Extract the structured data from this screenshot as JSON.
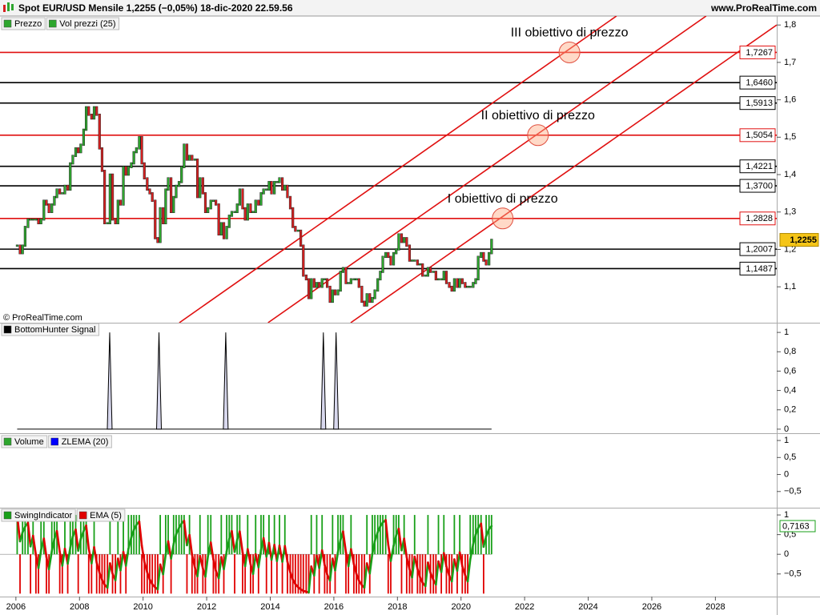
{
  "chart_data": [
    {
      "type": "candlestick",
      "title": "Spot EUR/USD Mensile 1,2255 (−0,05%) 18-dic-2020 22.59.56",
      "source": "www.ProRealTime.com",
      "copyright": "© ProRealTime.com",
      "legend": [
        {
          "name": "Prezzo",
          "color": "#2ea62e"
        },
        {
          "name": "Vol prezzi (25)",
          "color": "#2ea62e"
        }
      ],
      "up_color": "#2ea62e",
      "down_color": "#d62020",
      "x": [
        2006.04,
        2006.13,
        2006.21,
        2006.29,
        2006.38,
        2006.46,
        2006.54,
        2006.63,
        2006.71,
        2006.79,
        2006.88,
        2006.96,
        2007.04,
        2007.13,
        2007.21,
        2007.29,
        2007.38,
        2007.46,
        2007.54,
        2007.63,
        2007.71,
        2007.79,
        2007.88,
        2007.96,
        2008.04,
        2008.13,
        2008.21,
        2008.29,
        2008.38,
        2008.46,
        2008.54,
        2008.63,
        2008.71,
        2008.79,
        2008.88,
        2008.96,
        2009.04,
        2009.13,
        2009.21,
        2009.29,
        2009.38,
        2009.46,
        2009.54,
        2009.63,
        2009.71,
        2009.79,
        2009.88,
        2009.96,
        2010.04,
        2010.13,
        2010.21,
        2010.29,
        2010.38,
        2010.46,
        2010.54,
        2010.63,
        2010.71,
        2010.79,
        2010.88,
        2010.96,
        2011.04,
        2011.13,
        2011.21,
        2011.29,
        2011.38,
        2011.46,
        2011.54,
        2011.63,
        2011.71,
        2011.79,
        2011.88,
        2011.96,
        2012.04,
        2012.13,
        2012.21,
        2012.29,
        2012.38,
        2012.46,
        2012.54,
        2012.63,
        2012.71,
        2012.79,
        2012.88,
        2012.96,
        2013.04,
        2013.13,
        2013.21,
        2013.29,
        2013.38,
        2013.46,
        2013.54,
        2013.63,
        2013.71,
        2013.79,
        2013.88,
        2013.96,
        2014.04,
        2014.13,
        2014.21,
        2014.29,
        2014.38,
        2014.46,
        2014.54,
        2014.63,
        2014.71,
        2014.79,
        2014.88,
        2014.96,
        2015.04,
        2015.13,
        2015.21,
        2015.29,
        2015.38,
        2015.46,
        2015.54,
        2015.63,
        2015.71,
        2015.79,
        2015.88,
        2015.96,
        2016.04,
        2016.13,
        2016.21,
        2016.29,
        2016.38,
        2016.46,
        2016.54,
        2016.63,
        2016.71,
        2016.79,
        2016.88,
        2016.96,
        2017.04,
        2017.13,
        2017.21,
        2017.29,
        2017.38,
        2017.46,
        2017.54,
        2017.63,
        2017.71,
        2017.79,
        2017.88,
        2017.96,
        2018.04,
        2018.13,
        2018.21,
        2018.29,
        2018.38,
        2018.46,
        2018.54,
        2018.63,
        2018.71,
        2018.79,
        2018.88,
        2018.96,
        2019.04,
        2019.13,
        2019.21,
        2019.29,
        2019.38,
        2019.46,
        2019.54,
        2019.63,
        2019.71,
        2019.79,
        2019.88,
        2019.96,
        2020.04,
        2020.13,
        2020.21,
        2020.29,
        2020.38,
        2020.46,
        2020.54,
        2020.63,
        2020.71,
        2020.79,
        2020.88,
        2020.96
      ],
      "values": [
        1.21,
        1.19,
        1.21,
        1.26,
        1.28,
        1.28,
        1.28,
        1.28,
        1.27,
        1.28,
        1.33,
        1.32,
        1.3,
        1.32,
        1.34,
        1.36,
        1.35,
        1.35,
        1.37,
        1.36,
        1.43,
        1.45,
        1.47,
        1.46,
        1.48,
        1.52,
        1.58,
        1.56,
        1.55,
        1.58,
        1.56,
        1.47,
        1.41,
        1.27,
        1.27,
        1.4,
        1.28,
        1.27,
        1.33,
        1.32,
        1.42,
        1.4,
        1.42,
        1.43,
        1.46,
        1.47,
        1.5,
        1.43,
        1.39,
        1.36,
        1.35,
        1.33,
        1.23,
        1.22,
        1.31,
        1.27,
        1.36,
        1.39,
        1.3,
        1.34,
        1.37,
        1.38,
        1.42,
        1.48,
        1.44,
        1.45,
        1.44,
        1.44,
        1.34,
        1.39,
        1.35,
        1.3,
        1.31,
        1.33,
        1.33,
        1.32,
        1.24,
        1.27,
        1.23,
        1.26,
        1.29,
        1.3,
        1.3,
        1.32,
        1.36,
        1.31,
        1.28,
        1.32,
        1.3,
        1.3,
        1.33,
        1.32,
        1.35,
        1.36,
        1.36,
        1.38,
        1.35,
        1.38,
        1.38,
        1.39,
        1.36,
        1.37,
        1.34,
        1.31,
        1.26,
        1.25,
        1.25,
        1.21,
        1.13,
        1.12,
        1.07,
        1.12,
        1.1,
        1.11,
        1.1,
        1.12,
        1.12,
        1.1,
        1.06,
        1.09,
        1.08,
        1.09,
        1.14,
        1.15,
        1.11,
        1.11,
        1.12,
        1.12,
        1.12,
        1.1,
        1.06,
        1.05,
        1.08,
        1.06,
        1.07,
        1.09,
        1.12,
        1.14,
        1.18,
        1.19,
        1.18,
        1.16,
        1.19,
        1.2,
        1.24,
        1.22,
        1.23,
        1.21,
        1.17,
        1.17,
        1.17,
        1.16,
        1.16,
        1.13,
        1.13,
        1.15,
        1.14,
        1.14,
        1.12,
        1.12,
        1.12,
        1.14,
        1.11,
        1.1,
        1.09,
        1.12,
        1.1,
        1.12,
        1.11,
        1.1,
        1.1,
        1.1,
        1.11,
        1.12,
        1.18,
        1.19,
        1.17,
        1.16,
        1.19,
        1.2255
      ],
      "current_label": "1,2255",
      "ylim": [
        1.004,
        1.824
      ],
      "yticks": [
        {
          "value": 1.1,
          "label": "1,1"
        },
        {
          "value": 1.2,
          "label": "1,2"
        },
        {
          "value": 1.3,
          "label": "1,3"
        },
        {
          "value": 1.4,
          "label": "1,4"
        },
        {
          "value": 1.5,
          "label": "1,5"
        },
        {
          "value": 1.6,
          "label": "1,6"
        },
        {
          "value": 1.7,
          "label": "1,7"
        },
        {
          "value": 1.8,
          "label": "1,8"
        }
      ],
      "levels": [
        {
          "value": 1.7267,
          "label": "1,7267",
          "color": "#e01010"
        },
        {
          "value": 1.646,
          "label": "1,6460",
          "color": "#000000"
        },
        {
          "value": 1.5913,
          "label": "1,5913",
          "color": "#000000"
        },
        {
          "value": 1.5054,
          "label": "1,5054",
          "color": "#e01010"
        },
        {
          "value": 1.4221,
          "label": "1,4221",
          "color": "#000000"
        },
        {
          "value": 1.37,
          "label": "1,3700",
          "color": "#000000"
        },
        {
          "value": 1.2828,
          "label": "1,2828",
          "color": "#e01010"
        },
        {
          "value": 1.2007,
          "label": "1,2007",
          "color": "#000000"
        },
        {
          "value": 1.1487,
          "label": "1,1487",
          "color": "#000000"
        }
      ],
      "channel_lines": [
        {
          "x": [
            2011.14,
            2024.89
          ],
          "y": [
            1.004,
            1.824
          ],
          "color": "#e01010"
        },
        {
          "x": [
            2013.93,
            2027.71
          ],
          "y": [
            1.004,
            1.824
          ],
          "color": "#e01010"
        },
        {
          "x": [
            2016.53,
            2029.93
          ],
          "y": [
            1.004,
            1.8
          ],
          "color": "#e01010"
        }
      ],
      "targets": [
        {
          "label": "I obiettivo di prezzo",
          "x": 2021.31,
          "y": 1.2828
        },
        {
          "label": "II obiettivo di prezzo",
          "x": 2022.42,
          "y": 1.5054
        },
        {
          "label": "III obiettivo di prezzo",
          "x": 2023.41,
          "y": 1.7267
        }
      ]
    },
    {
      "type": "spike",
      "legend": [
        {
          "name": "BottomHunter Signal",
          "color": "#000000"
        }
      ],
      "x": [
        2008.95,
        2010.5,
        2012.6,
        2015.67,
        2016.07
      ],
      "values": [
        1,
        1,
        1,
        1,
        1
      ],
      "color": "#000000",
      "ylim": [
        -0.042,
        1.092
      ],
      "yticks": [
        0,
        {
          "value": 0.2,
          "label": "0,2"
        },
        {
          "value": 0.4,
          "label": "0,4"
        },
        {
          "value": 0.6,
          "label": "0,6"
        },
        {
          "value": 0.8,
          "label": "0,8"
        },
        1
      ]
    },
    {
      "type": "empty",
      "legend": [
        {
          "name": "Volume",
          "color": "#2ea62e"
        },
        {
          "name": "ZLEMA (20)",
          "color": "#0000ff"
        }
      ],
      "ylim": [
        -0.976,
        1.19
      ],
      "yticks": [
        1,
        {
          "value": 0.5,
          "label": "0,5"
        },
        0,
        {
          "value": -0.5,
          "label": "−0,5"
        }
      ]
    },
    {
      "type": "swing",
      "up_color": "#19a019",
      "down_color": "#e00000",
      "series": [
        {
          "name": "SwingIndicator",
          "color": "#19a019",
          "values": [
            1,
            -1,
            1,
            1,
            1,
            -1,
            1,
            -1,
            -1,
            1,
            1,
            -1,
            -1,
            1,
            1,
            1,
            -1,
            -1,
            1,
            -1,
            1,
            1,
            1,
            -1,
            1,
            1,
            1,
            -1,
            -1,
            1,
            -1,
            -1,
            -1,
            -1,
            -1,
            1,
            -1,
            -1,
            1,
            -1,
            1,
            -1,
            1,
            1,
            1,
            1,
            1,
            -1,
            -1,
            -1,
            -1,
            -1,
            -1,
            -1,
            1,
            -1,
            1,
            1,
            -1,
            1,
            1,
            1,
            1,
            1,
            -1,
            1,
            -1,
            -1,
            -1,
            1,
            -1,
            -1,
            1,
            1,
            -1,
            -1,
            -1,
            1,
            -1,
            1,
            1,
            1,
            -1,
            1,
            1,
            -1,
            -1,
            1,
            -1,
            -1,
            1,
            -1,
            1,
            1,
            -1,
            1,
            -1,
            1,
            -1,
            1,
            -1,
            1,
            -1,
            -1,
            -1,
            -1,
            -1,
            -1,
            -1,
            -1,
            -1,
            1,
            -1,
            1,
            -1,
            1,
            -1,
            -1,
            -1,
            1,
            -1,
            1,
            1,
            1,
            -1,
            -1,
            1,
            -1,
            -1,
            -1,
            -1,
            -1,
            1,
            -1,
            1,
            1,
            1,
            1,
            1,
            1,
            -1,
            -1,
            1,
            1,
            1,
            -1,
            1,
            -1,
            -1,
            -1,
            1,
            -1,
            -1,
            -1,
            -1,
            1,
            -1,
            -1,
            -1,
            1,
            -1,
            1,
            -1,
            -1,
            -1,
            1,
            -1,
            1,
            -1,
            -1,
            -1,
            1,
            1,
            1,
            1,
            1,
            -1,
            1,
            1,
            1
          ]
        },
        {
          "name": "EMA (5)",
          "color": "#e00000",
          "values": [
            1,
            0.33,
            0.56,
            0.7,
            0.8,
            0.2,
            0.47,
            -0.02,
            -0.35,
            0.1,
            0.4,
            -0.07,
            -0.38,
            0.08,
            0.39,
            0.59,
            0.06,
            -0.29,
            0.14,
            -0.24,
            0.17,
            0.45,
            0.63,
            0.09,
            0.39,
            0.59,
            0.73,
            0.15,
            -0.23,
            0.18,
            -0.21,
            -0.47,
            -0.65,
            -0.77,
            -0.85,
            -0.23,
            -0.49,
            -0.66,
            -0.11,
            -0.41,
            0.06,
            -0.29,
            0.14,
            0.43,
            0.62,
            0.75,
            0.83,
            0.22,
            -0.19,
            -0.46,
            -0.64,
            -0.76,
            -0.84,
            -0.89,
            -0.26,
            -0.51,
            -0.01,
            0.33,
            -0.11,
            0.26,
            0.51,
            0.67,
            0.78,
            0.85,
            0.23,
            0.49,
            -0.01,
            -0.34,
            -0.56,
            -0.04,
            -0.36,
            -0.57,
            -0.05,
            0.3,
            -0.13,
            -0.42,
            -0.61,
            -0.07,
            -0.38,
            0.08,
            0.39,
            0.59,
            0.06,
            0.37,
            0.58,
            0.05,
            -0.3,
            0.13,
            -0.25,
            -0.5,
            0,
            -0.33,
            0.11,
            0.41,
            -0.06,
            0.29,
            -0.14,
            0.24,
            -0.17,
            0.22,
            -0.19,
            0.21,
            -0.19,
            -0.46,
            -0.64,
            -0.76,
            -0.84,
            -0.89,
            -0.93,
            -0.95,
            -0.97,
            -0.31,
            -0.54,
            -0.03,
            -0.35,
            0.1,
            -0.27,
            -0.51,
            -0.67,
            -0.11,
            -0.41,
            0.06,
            0.37,
            0.58,
            0.05,
            -0.3,
            0.13,
            -0.25,
            -0.5,
            -0.67,
            -0.78,
            -0.85,
            -0.23,
            -0.49,
            0.01,
            0.34,
            0.56,
            0.71,
            0.81,
            0.87,
            0.25,
            -0.17,
            0.22,
            0.48,
            0.65,
            0.1,
            0.4,
            -0.07,
            -0.38,
            -0.59,
            -0.06,
            -0.37,
            -0.58,
            -0.72,
            -0.81,
            -0.21,
            -0.47,
            -0.65,
            -0.77,
            -0.18,
            -0.45,
            0.03,
            -0.31,
            -0.54,
            -0.69,
            -0.13,
            -0.42,
            0.05,
            -0.3,
            -0.53,
            -0.69,
            -0.13,
            0.25,
            0.5,
            0.67,
            0.78,
            0.19,
            0.46,
            0.64,
            0.7163
          ],
          "current_label": "0,7163"
        }
      ],
      "ylim": [
        -1.075,
        1.164
      ],
      "yticks": [
        1,
        {
          "value": 0.5,
          "label": "0,5"
        },
        0,
        {
          "value": -0.5,
          "label": "−0,5"
        }
      ],
      "xlim": [
        2005.5,
        2029.93
      ],
      "xticks": [
        2006,
        2008,
        2010,
        2012,
        2014,
        2016,
        2018,
        2020,
        2022,
        2024,
        2026,
        2028
      ]
    }
  ]
}
